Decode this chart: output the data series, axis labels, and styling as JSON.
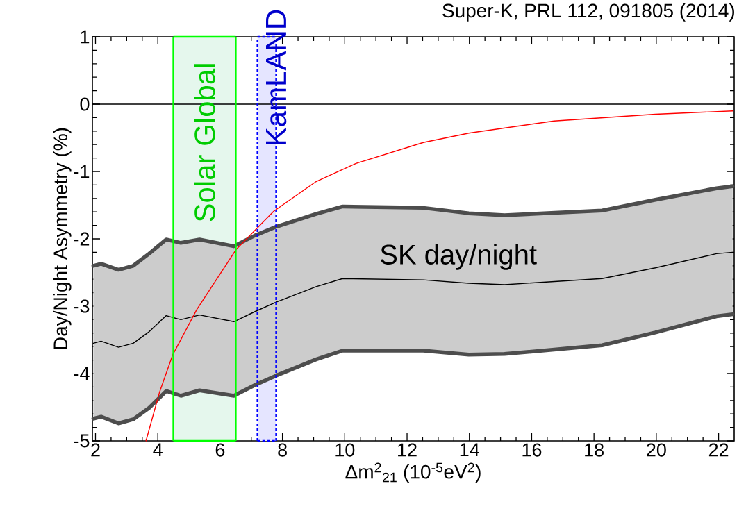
{
  "chart_data": {
    "type": "line",
    "xlabel": "Δm$^{2}$$_{21}$ (10$^{-5}$eV$^{2}$)",
    "ylabel": "Day/Night Asymmetry (%)",
    "xlim": [
      1.9,
      22.5
    ],
    "ylim": [
      -5,
      1
    ],
    "xticks": [
      2,
      4,
      6,
      8,
      10,
      12,
      14,
      16,
      18,
      20,
      22
    ],
    "yticks": [
      -5,
      -4,
      -3,
      -2,
      -1,
      0,
      1
    ],
    "x": [
      1.93,
      2.18,
      2.74,
      3.21,
      3.72,
      4.27,
      4.74,
      5.34,
      6.44,
      7.12,
      7.8,
      9.08,
      9.93,
      12.52,
      13.98,
      15.13,
      18.26,
      19.97,
      21.93,
      22.45
    ],
    "series": [
      {
        "color": "#000000",
        "values": [
          -3.55,
          -3.52,
          -3.61,
          -3.55,
          -3.38,
          -3.14,
          -3.2,
          -3.13,
          -3.23,
          -3.08,
          -2.94,
          -2.71,
          -2.59,
          -2.61,
          -2.66,
          -2.68,
          -2.59,
          -2.43,
          -2.22,
          -2.2
        ],
        "lower": [
          -4.67,
          -4.64,
          -4.74,
          -4.68,
          -4.51,
          -4.26,
          -4.33,
          -4.25,
          -4.33,
          -4.17,
          -4.03,
          -3.79,
          -3.66,
          -3.66,
          -3.72,
          -3.71,
          -3.58,
          -3.39,
          -3.15,
          -3.12
        ],
        "upper": [
          -2.4,
          -2.37,
          -2.46,
          -2.4,
          -2.22,
          -2.01,
          -2.06,
          -2.01,
          -2.11,
          -1.95,
          -1.82,
          -1.63,
          -1.52,
          -1.54,
          -1.62,
          -1.65,
          -1.58,
          -1.42,
          -1.25,
          -1.22
        ]
      },
      {
        "color": "#4d4d4d",
        "values": [
          -2.4,
          -2.37,
          -2.46,
          -2.4,
          -2.22,
          -2.01,
          -2.06,
          -2.01,
          -2.11,
          -1.95,
          -1.82,
          -1.63,
          -1.52,
          -1.54,
          -1.62,
          -1.65,
          -1.58,
          -1.42,
          -1.25,
          -1.22
        ]
      },
      {
        "color": "#4d4d4d",
        "values": [
          -4.67,
          -4.64,
          -4.74,
          -4.68,
          -4.51,
          -4.26,
          -4.33,
          -4.25,
          -4.33,
          -4.17,
          -4.03,
          -3.79,
          -3.66,
          -3.66,
          -3.72,
          -3.71,
          -3.58,
          -3.39,
          -3.15,
          -3.12
        ]
      },
      {
        "color": "#ff0000",
        "x": [
          3.62,
          4.06,
          4.48,
          5.25,
          6.51,
          7.72,
          9.08,
          10.36,
          12.52,
          13.98,
          16.72,
          19.97,
          22.45
        ],
        "values": [
          -5.0,
          -4.27,
          -3.72,
          -3.05,
          -2.16,
          -1.59,
          -1.15,
          -0.88,
          -0.57,
          -0.43,
          -0.25,
          -0.15,
          -0.1
        ]
      }
    ],
    "ref_lines": [
      {
        "axis": "y",
        "value": 0,
        "color": "#000000"
      },
      {
        "axis": "x",
        "value": 4.5,
        "color": "#00ff00",
        "line_style": "solid"
      },
      {
        "axis": "x",
        "value": 6.5,
        "color": "#00ff00",
        "line_style": "solid"
      },
      {
        "axis": "x",
        "value": 7.2,
        "color": "#0000ff",
        "line_style": "dotted"
      },
      {
        "axis": "x",
        "value": 7.8,
        "color": "#0000ff",
        "line_style": "dotted"
      }
    ],
    "bands": [
      {
        "axis": "x",
        "from": 4.5,
        "to": 6.5,
        "label": "Solar Global",
        "color": "#e5f7ed"
      },
      {
        "axis": "x",
        "from": 7.2,
        "to": 7.8,
        "label": "KamLAND",
        "color": "#e5e5ff"
      }
    ],
    "annotations": [
      "SK day/night",
      "Super-K, PRL 112, 091805 (2014)"
    ]
  }
}
